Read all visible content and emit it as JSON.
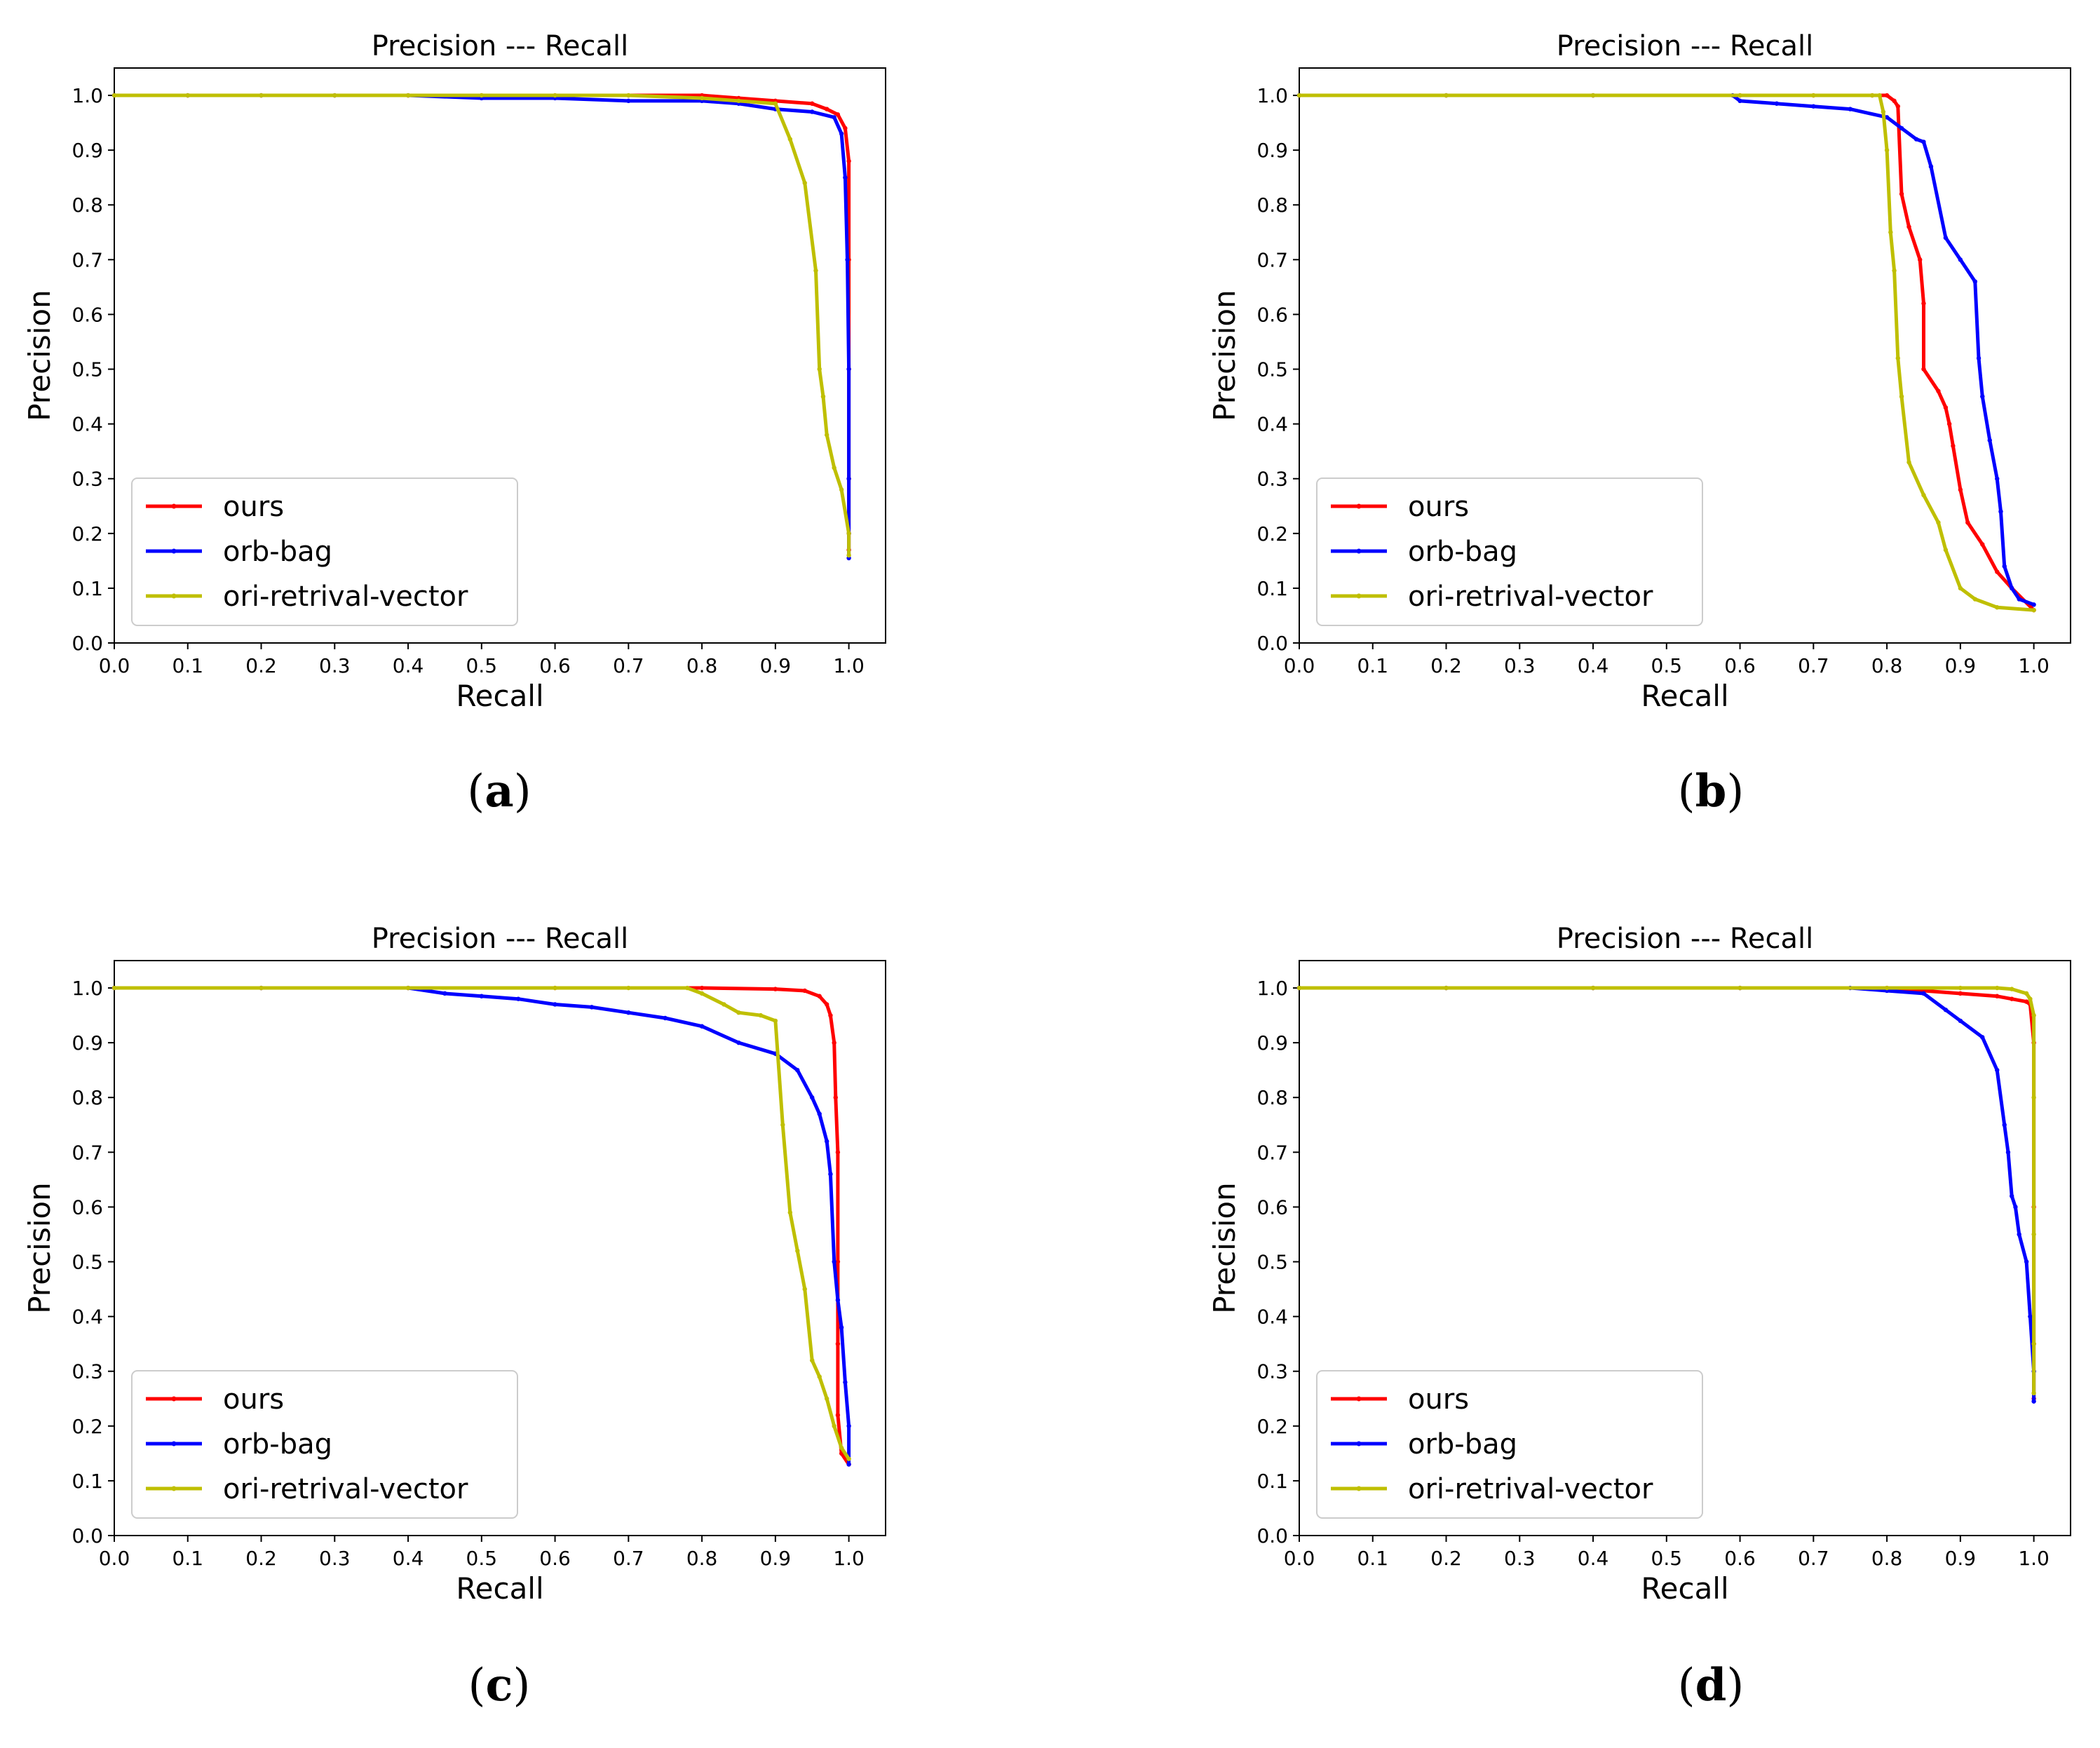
{
  "colors": {
    "ours": "#ff0000",
    "orb_bag": "#0000ff",
    "ori_retrival_vector": "#bfbf00",
    "axes": "#000000",
    "background": "#ffffff"
  },
  "chart_data": [
    {
      "panel": "a",
      "caption_letter": "a",
      "type": "line",
      "title": "Precision --- Recall",
      "xlabel": "Recall",
      "ylabel": "Precision",
      "xlim": [
        0,
        1.05
      ],
      "ylim": [
        0,
        1.05
      ],
      "xticks": [
        "0.0",
        "0.1",
        "0.2",
        "0.3",
        "0.4",
        "0.5",
        "0.6",
        "0.7",
        "0.8",
        "0.9",
        "1.0"
      ],
      "yticks": [
        "0.0",
        "0.1",
        "0.2",
        "0.3",
        "0.4",
        "0.5",
        "0.6",
        "0.7",
        "0.8",
        "0.9",
        "1.0"
      ],
      "legend": [
        "ours",
        "orb-bag",
        "ori-retrival-vector"
      ],
      "legend_position": "lower-left",
      "series": [
        {
          "name": "ours",
          "color_key": "ours",
          "x": [
            0.0,
            0.1,
            0.2,
            0.3,
            0.4,
            0.5,
            0.6,
            0.7,
            0.8,
            0.85,
            0.9,
            0.95,
            0.97,
            0.985,
            0.995,
            1.0,
            1.0,
            1.0,
            1.0,
            1.0,
            1.0
          ],
          "y": [
            1.0,
            1.0,
            1.0,
            1.0,
            1.0,
            1.0,
            1.0,
            1.0,
            1.0,
            0.995,
            0.99,
            0.985,
            0.975,
            0.965,
            0.94,
            0.88,
            0.7,
            0.5,
            0.3,
            0.2,
            0.17
          ]
        },
        {
          "name": "orb-bag",
          "color_key": "orb_bag",
          "x": [
            0.0,
            0.1,
            0.2,
            0.3,
            0.4,
            0.5,
            0.6,
            0.7,
            0.8,
            0.85,
            0.9,
            0.95,
            0.98,
            0.99,
            0.995,
            0.998,
            1.0,
            1.0,
            1.0,
            1.0
          ],
          "y": [
            1.0,
            1.0,
            1.0,
            1.0,
            1.0,
            0.995,
            0.995,
            0.99,
            0.99,
            0.985,
            0.975,
            0.97,
            0.96,
            0.93,
            0.85,
            0.7,
            0.5,
            0.3,
            0.2,
            0.155
          ]
        },
        {
          "name": "ori-retrival-vector",
          "color_key": "ori_retrival_vector",
          "x": [
            0.0,
            0.1,
            0.2,
            0.3,
            0.4,
            0.5,
            0.6,
            0.7,
            0.8,
            0.85,
            0.9,
            0.92,
            0.94,
            0.955,
            0.96,
            0.965,
            0.97,
            0.98,
            0.99,
            1.0,
            1.0
          ],
          "y": [
            1.0,
            1.0,
            1.0,
            1.0,
            1.0,
            1.0,
            1.0,
            1.0,
            0.995,
            0.99,
            0.985,
            0.92,
            0.84,
            0.68,
            0.5,
            0.45,
            0.38,
            0.32,
            0.28,
            0.2,
            0.16
          ]
        }
      ]
    },
    {
      "panel": "b",
      "caption_letter": "b",
      "type": "line",
      "title": "Precision --- Recall",
      "xlabel": "Recall",
      "ylabel": "Precision",
      "xlim": [
        0,
        1.05
      ],
      "ylim": [
        0,
        1.05
      ],
      "xticks": [
        "0.0",
        "0.1",
        "0.2",
        "0.3",
        "0.4",
        "0.5",
        "0.6",
        "0.7",
        "0.8",
        "0.9",
        "1.0"
      ],
      "yticks": [
        "0.0",
        "0.1",
        "0.2",
        "0.3",
        "0.4",
        "0.5",
        "0.6",
        "0.7",
        "0.8",
        "0.9",
        "1.0"
      ],
      "legend": [
        "ours",
        "orb-bag",
        "ori-retrival-vector"
      ],
      "legend_position": "lower-left",
      "series": [
        {
          "name": "ours",
          "color_key": "ours",
          "x": [
            0.0,
            0.2,
            0.4,
            0.6,
            0.7,
            0.78,
            0.8,
            0.81,
            0.815,
            0.82,
            0.83,
            0.845,
            0.85,
            0.85,
            0.87,
            0.88,
            0.885,
            0.89,
            0.9,
            0.91,
            0.93,
            0.95,
            0.97,
            1.0
          ],
          "y": [
            1.0,
            1.0,
            1.0,
            1.0,
            1.0,
            1.0,
            1.0,
            0.99,
            0.98,
            0.82,
            0.76,
            0.7,
            0.62,
            0.5,
            0.46,
            0.43,
            0.4,
            0.36,
            0.28,
            0.22,
            0.18,
            0.13,
            0.1,
            0.06
          ]
        },
        {
          "name": "orb-bag",
          "color_key": "orb_bag",
          "x": [
            0.0,
            0.2,
            0.4,
            0.59,
            0.6,
            0.65,
            0.7,
            0.75,
            0.8,
            0.82,
            0.84,
            0.85,
            0.86,
            0.88,
            0.9,
            0.92,
            0.925,
            0.93,
            0.94,
            0.95,
            0.955,
            0.96,
            0.97,
            0.98,
            1.0
          ],
          "y": [
            1.0,
            1.0,
            1.0,
            1.0,
            0.99,
            0.985,
            0.98,
            0.975,
            0.96,
            0.94,
            0.92,
            0.915,
            0.87,
            0.74,
            0.7,
            0.66,
            0.52,
            0.45,
            0.37,
            0.3,
            0.24,
            0.14,
            0.1,
            0.08,
            0.07
          ]
        },
        {
          "name": "ori-retrival-vector",
          "color_key": "ori_retrival_vector",
          "x": [
            0.0,
            0.2,
            0.4,
            0.6,
            0.7,
            0.78,
            0.79,
            0.795,
            0.8,
            0.805,
            0.81,
            0.815,
            0.82,
            0.83,
            0.85,
            0.87,
            0.88,
            0.9,
            0.92,
            0.95,
            1.0
          ],
          "y": [
            1.0,
            1.0,
            1.0,
            1.0,
            1.0,
            1.0,
            1.0,
            0.97,
            0.9,
            0.75,
            0.68,
            0.52,
            0.45,
            0.33,
            0.27,
            0.22,
            0.17,
            0.1,
            0.08,
            0.065,
            0.06
          ]
        }
      ]
    },
    {
      "panel": "c",
      "caption_letter": "c",
      "type": "line",
      "title": "Precision --- Recall",
      "xlabel": "Recall",
      "ylabel": "Precision",
      "xlim": [
        0,
        1.05
      ],
      "ylim": [
        0,
        1.05
      ],
      "xticks": [
        "0.0",
        "0.1",
        "0.2",
        "0.3",
        "0.4",
        "0.5",
        "0.6",
        "0.7",
        "0.8",
        "0.9",
        "1.0"
      ],
      "yticks": [
        "0.0",
        "0.1",
        "0.2",
        "0.3",
        "0.4",
        "0.5",
        "0.6",
        "0.7",
        "0.8",
        "0.9",
        "1.0"
      ],
      "legend": [
        "ours",
        "orb-bag",
        "ori-retrival-vector"
      ],
      "legend_position": "lower-left",
      "series": [
        {
          "name": "ours",
          "color_key": "ours",
          "x": [
            0.0,
            0.2,
            0.4,
            0.6,
            0.8,
            0.9,
            0.94,
            0.96,
            0.97,
            0.975,
            0.98,
            0.982,
            0.985,
            0.985,
            0.985,
            0.985,
            0.99,
            1.0
          ],
          "y": [
            1.0,
            1.0,
            1.0,
            1.0,
            1.0,
            0.998,
            0.995,
            0.985,
            0.97,
            0.95,
            0.9,
            0.8,
            0.7,
            0.5,
            0.35,
            0.22,
            0.15,
            0.13
          ]
        },
        {
          "name": "orb-bag",
          "color_key": "orb_bag",
          "x": [
            0.0,
            0.2,
            0.4,
            0.45,
            0.5,
            0.55,
            0.6,
            0.65,
            0.7,
            0.75,
            0.8,
            0.85,
            0.9,
            0.93,
            0.95,
            0.96,
            0.97,
            0.975,
            0.98,
            0.985,
            0.99,
            0.995,
            1.0,
            1.0
          ],
          "y": [
            1.0,
            1.0,
            1.0,
            0.99,
            0.985,
            0.98,
            0.97,
            0.965,
            0.955,
            0.945,
            0.93,
            0.9,
            0.88,
            0.85,
            0.8,
            0.77,
            0.72,
            0.66,
            0.5,
            0.43,
            0.38,
            0.28,
            0.2,
            0.13
          ]
        },
        {
          "name": "ori-retrival-vector",
          "color_key": "ori_retrival_vector",
          "x": [
            0.0,
            0.2,
            0.4,
            0.6,
            0.7,
            0.78,
            0.8,
            0.83,
            0.85,
            0.88,
            0.9,
            0.91,
            0.92,
            0.93,
            0.94,
            0.95,
            0.96,
            0.97,
            0.98,
            0.99,
            1.0
          ],
          "y": [
            1.0,
            1.0,
            1.0,
            1.0,
            1.0,
            1.0,
            0.99,
            0.97,
            0.955,
            0.95,
            0.94,
            0.75,
            0.59,
            0.52,
            0.45,
            0.32,
            0.29,
            0.25,
            0.2,
            0.16,
            0.14
          ]
        }
      ]
    },
    {
      "panel": "d",
      "caption_letter": "d",
      "type": "line",
      "title": "Precision --- Recall",
      "xlabel": "Recall",
      "ylabel": "Precision",
      "xlim": [
        0,
        1.05
      ],
      "ylim": [
        0,
        1.05
      ],
      "xticks": [
        "0.0",
        "0.1",
        "0.2",
        "0.3",
        "0.4",
        "0.5",
        "0.6",
        "0.7",
        "0.8",
        "0.9",
        "1.0"
      ],
      "yticks": [
        "0.0",
        "0.1",
        "0.2",
        "0.3",
        "0.4",
        "0.5",
        "0.6",
        "0.7",
        "0.8",
        "0.9",
        "1.0"
      ],
      "legend": [
        "ours",
        "orb-bag",
        "ori-retrival-vector"
      ],
      "legend_position": "lower-left",
      "series": [
        {
          "name": "ours",
          "color_key": "ours",
          "x": [
            0.0,
            0.2,
            0.4,
            0.6,
            0.8,
            0.85,
            0.9,
            0.95,
            0.97,
            0.99,
            0.995,
            1.0,
            1.0,
            1.0,
            1.0
          ],
          "y": [
            1.0,
            1.0,
            1.0,
            1.0,
            1.0,
            0.995,
            0.99,
            0.985,
            0.98,
            0.975,
            0.97,
            0.9,
            0.6,
            0.35,
            0.25
          ]
        },
        {
          "name": "orb-bag",
          "color_key": "orb_bag",
          "x": [
            0.0,
            0.2,
            0.4,
            0.6,
            0.75,
            0.8,
            0.85,
            0.88,
            0.9,
            0.93,
            0.95,
            0.96,
            0.965,
            0.97,
            0.975,
            0.98,
            0.99,
            0.995,
            1.0,
            1.0
          ],
          "y": [
            1.0,
            1.0,
            1.0,
            1.0,
            1.0,
            0.995,
            0.99,
            0.96,
            0.94,
            0.91,
            0.85,
            0.75,
            0.7,
            0.62,
            0.6,
            0.55,
            0.5,
            0.4,
            0.3,
            0.245
          ]
        },
        {
          "name": "ori-retrival-vector",
          "color_key": "ori_retrival_vector",
          "x": [
            0.0,
            0.2,
            0.4,
            0.6,
            0.8,
            0.9,
            0.95,
            0.97,
            0.99,
            0.995,
            1.0,
            1.0,
            1.0,
            1.0,
            1.0
          ],
          "y": [
            1.0,
            1.0,
            1.0,
            1.0,
            1.0,
            1.0,
            1.0,
            0.998,
            0.99,
            0.98,
            0.95,
            0.8,
            0.55,
            0.35,
            0.26
          ]
        }
      ]
    }
  ]
}
